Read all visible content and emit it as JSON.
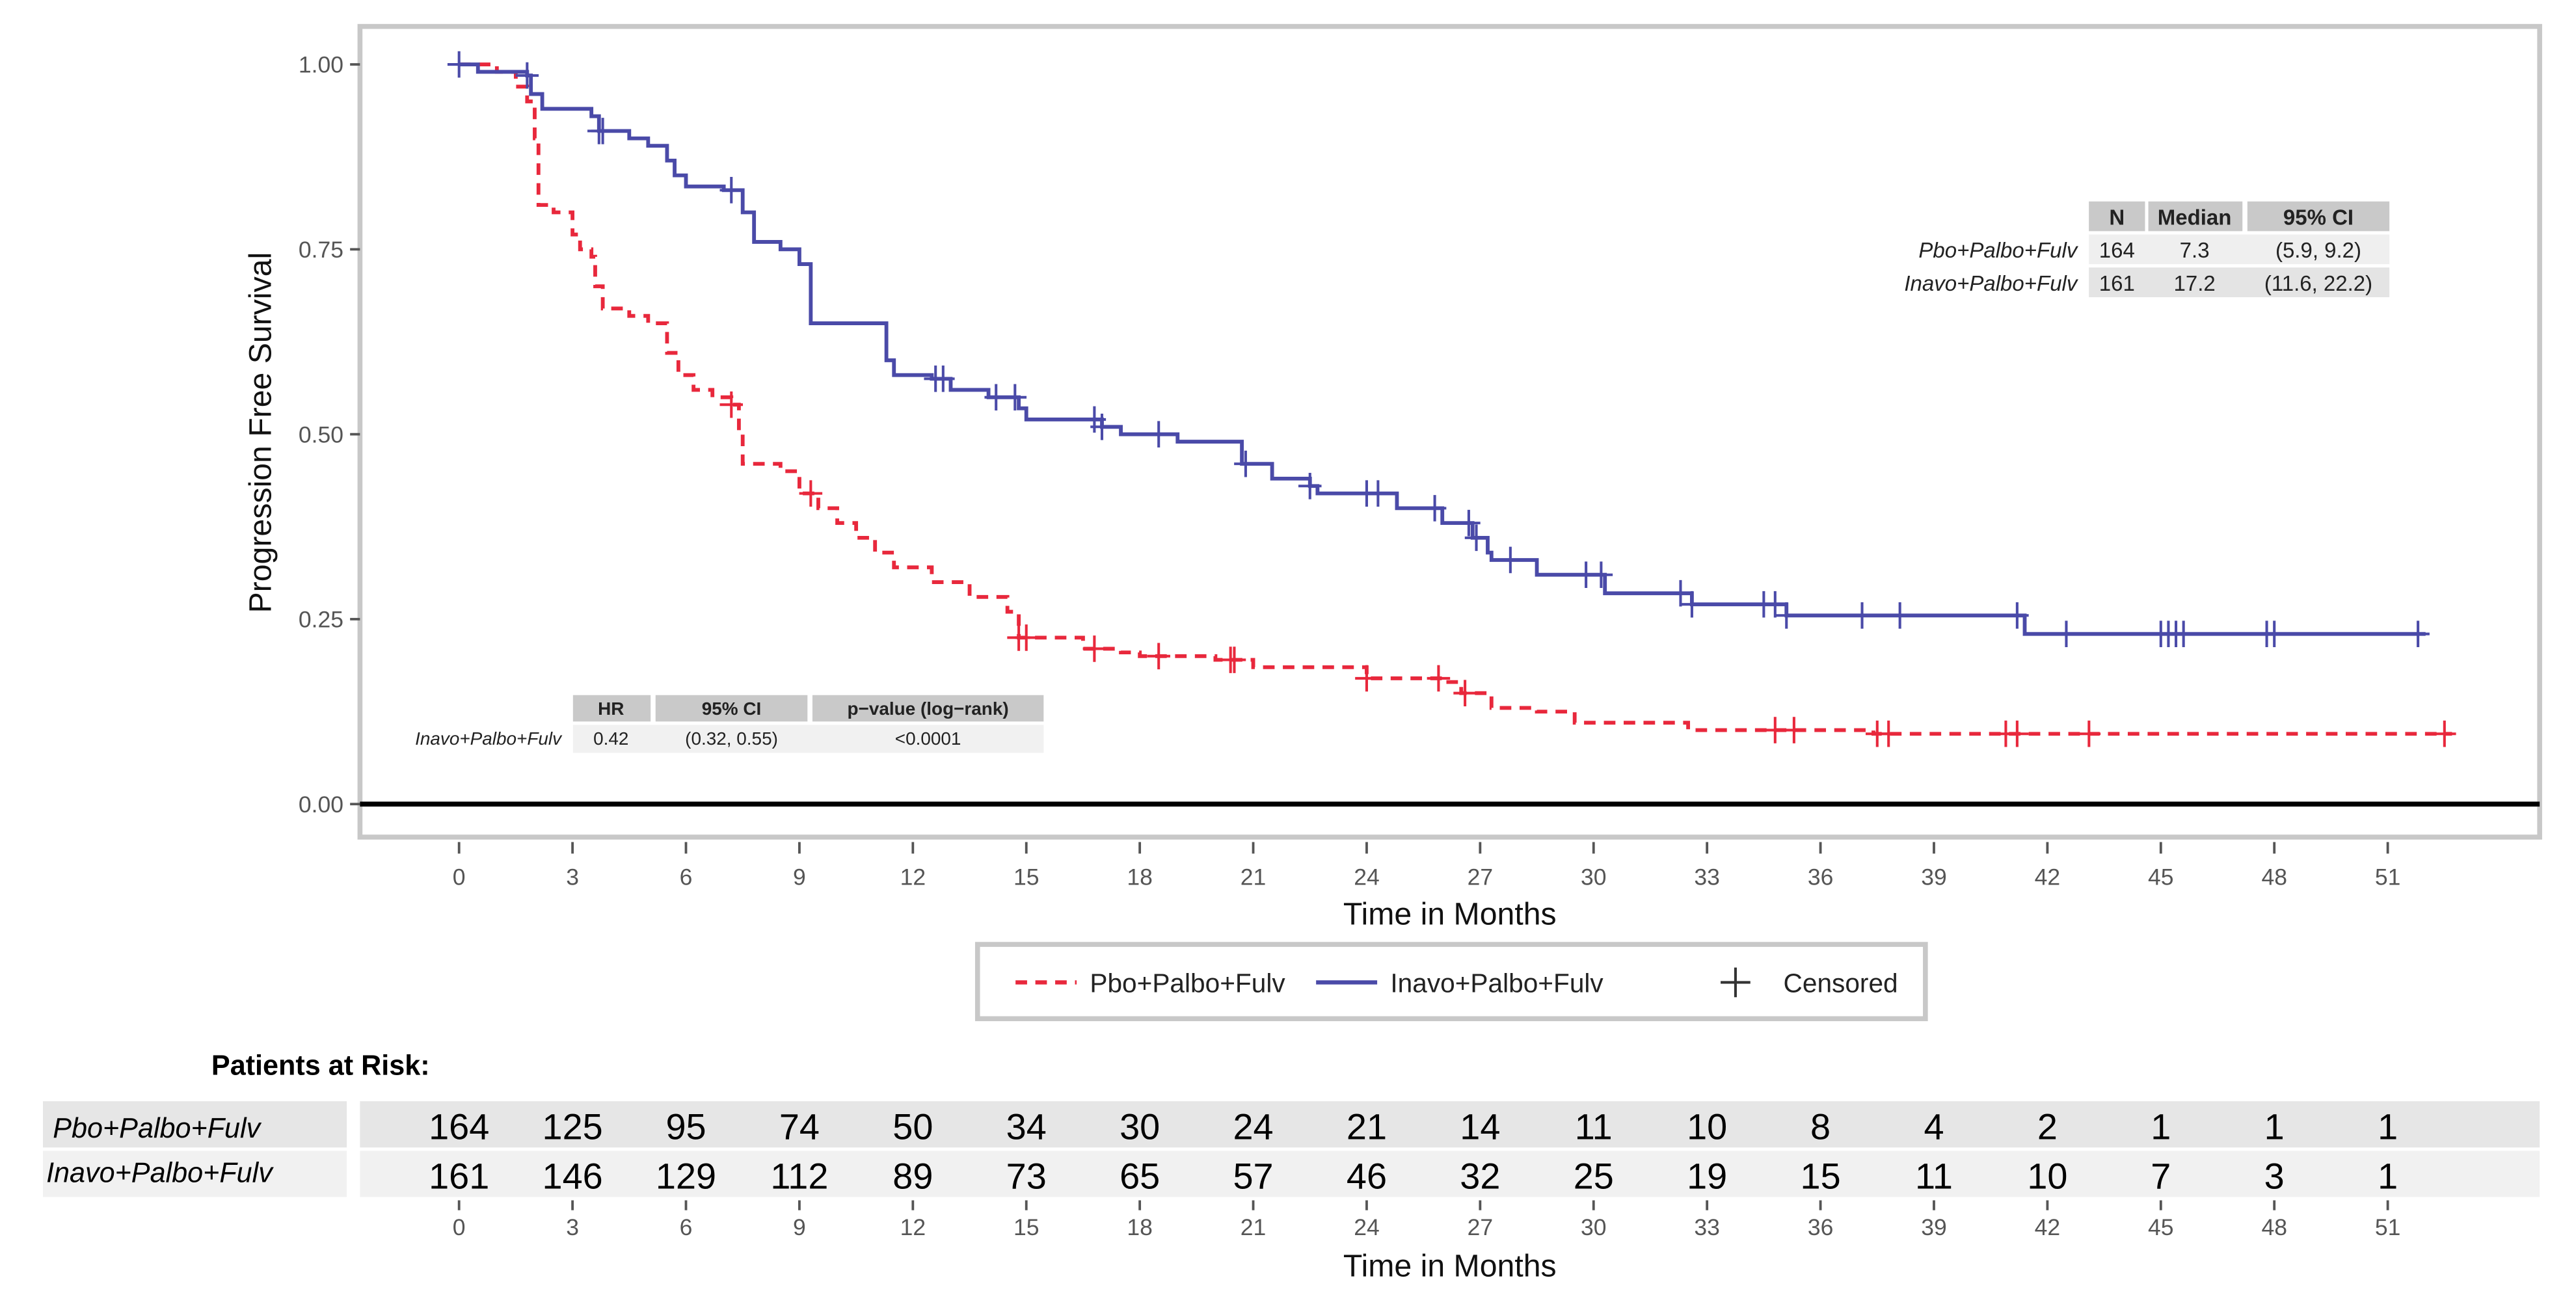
{
  "chart_data": {
    "type": "line",
    "step": true,
    "xlabel": "Time in Months",
    "ylabel": "Progression Free Survival",
    "xlim": [
      0,
      53
    ],
    "ylim": [
      0,
      1
    ],
    "xticks": [
      0,
      3,
      6,
      9,
      12,
      15,
      18,
      21,
      24,
      27,
      30,
      33,
      36,
      39,
      42,
      45,
      48,
      51
    ],
    "yticks": [
      "0.00",
      "0.25",
      "0.50",
      "0.75",
      "1.00"
    ],
    "grid": false,
    "legend_position": "bottom",
    "legend": {
      "pbo": "Pbo+Palbo+Fulv",
      "inavo": "Inavo+Palbo+Fulv",
      "censored": "Censored"
    },
    "series": [
      {
        "name": "Pbo+Palbo+Fulv",
        "color": "#e8283c",
        "style": "dashed",
        "x": [
          0,
          1.0,
          1.5,
          1.8,
          2.0,
          2.1,
          2.5,
          3.0,
          3.2,
          3.5,
          3.6,
          3.8,
          4.5,
          5.0,
          5.5,
          5.8,
          6.2,
          6.7,
          7.2,
          7.4,
          7.5,
          8.5,
          9.0,
          9.5,
          10,
          10.5,
          11,
          11.5,
          12.5,
          13.5,
          14.5,
          14.8,
          16.5,
          17.5,
          18,
          20,
          21,
          24,
          26,
          26.5,
          27.3,
          28.5,
          29.5,
          32.5,
          37.4,
          52.7
        ],
        "y": [
          1.0,
          0.99,
          0.97,
          0.95,
          0.9,
          0.81,
          0.8,
          0.77,
          0.75,
          0.74,
          0.7,
          0.67,
          0.66,
          0.65,
          0.61,
          0.58,
          0.56,
          0.55,
          0.54,
          0.5,
          0.46,
          0.45,
          0.42,
          0.4,
          0.38,
          0.36,
          0.34,
          0.32,
          0.3,
          0.28,
          0.26,
          0.225,
          0.21,
          0.205,
          0.2,
          0.195,
          0.185,
          0.17,
          0.165,
          0.15,
          0.13,
          0.125,
          0.11,
          0.1,
          0.095,
          0.095
        ],
        "censored": [
          7.2,
          9.3,
          14.8,
          15.0,
          16.8,
          18.5,
          20.4,
          20.5,
          24.0,
          25.9,
          26.6,
          34.8,
          35.3,
          37.5,
          37.8,
          40.9,
          41.2,
          43.1,
          52.5
        ]
      },
      {
        "name": "Inavo+Palbo+Fulv",
        "color": "#4a4aa8",
        "style": "solid",
        "x": [
          0,
          0.5,
          1.8,
          1.9,
          2.2,
          3.5,
          3.7,
          4.5,
          5.0,
          5.5,
          5.7,
          6.0,
          7.0,
          7.5,
          7.8,
          8.5,
          9.0,
          9.3,
          11.0,
          11.3,
          11.5,
          12.5,
          13,
          14,
          14.8,
          15,
          16.5,
          17,
          17.5,
          19.0,
          20.5,
          20.7,
          21.5,
          22.5,
          22.7,
          24.8,
          26,
          26.8,
          27.2,
          27.3,
          28.5,
          30.3,
          32.6,
          35.1,
          41.4,
          52
        ],
        "y": [
          1.0,
          0.99,
          0.985,
          0.96,
          0.94,
          0.93,
          0.91,
          0.9,
          0.89,
          0.87,
          0.85,
          0.835,
          0.83,
          0.8,
          0.76,
          0.75,
          0.73,
          0.65,
          0.65,
          0.6,
          0.58,
          0.575,
          0.56,
          0.55,
          0.535,
          0.52,
          0.52,
          0.51,
          0.5,
          0.49,
          0.49,
          0.46,
          0.44,
          0.43,
          0.42,
          0.4,
          0.38,
          0.36,
          0.34,
          0.33,
          0.31,
          0.285,
          0.27,
          0.255,
          0.23,
          0.23
        ],
        "censored": [
          0,
          1.8,
          3.7,
          3.8,
          7.2,
          12.6,
          12.8,
          14.2,
          14.7,
          16.8,
          17.0,
          18.5,
          20.8,
          22.5,
          24.0,
          24.3,
          25.8,
          26.7,
          26.9,
          27.8,
          29.8,
          30.2,
          32.3,
          32.6,
          34.5,
          34.8,
          35.1,
          37.1,
          38.1,
          41.2,
          42.5,
          45.0,
          45.2,
          45.4,
          45.6,
          47.8,
          48.0,
          51.8
        ]
      }
    ],
    "median_table": {
      "headers": [
        "N",
        "Median",
        "95% CI"
      ],
      "rows": [
        {
          "label": "Pbo+Palbo+Fulv",
          "n": "164",
          "median": "7.3",
          "ci": "(5.9, 9.2)"
        },
        {
          "label": "Inavo+Palbo+Fulv",
          "n": "161",
          "median": "17.2",
          "ci": "(11.6, 22.2)"
        }
      ]
    },
    "hr_table": {
      "headers": [
        "HR",
        "95% CI",
        "p−value (log−rank)"
      ],
      "row": {
        "label": "Inavo+Palbo+Fulv",
        "hr": "0.42",
        "ci": "(0.32, 0.55)",
        "p": "<0.0001"
      }
    },
    "risk_table": {
      "title": "Patients at Risk:",
      "xlabel": "Time in Months",
      "rows": [
        {
          "label": "Pbo+Palbo+Fulv",
          "values": [
            164,
            125,
            95,
            74,
            50,
            34,
            30,
            24,
            21,
            14,
            11,
            10,
            8,
            4,
            2,
            1,
            1,
            1
          ]
        },
        {
          "label": "Inavo+Palbo+Fulv",
          "values": [
            161,
            146,
            129,
            112,
            89,
            73,
            65,
            57,
            46,
            32,
            25,
            19,
            15,
            11,
            10,
            7,
            3,
            1
          ]
        }
      ]
    }
  }
}
